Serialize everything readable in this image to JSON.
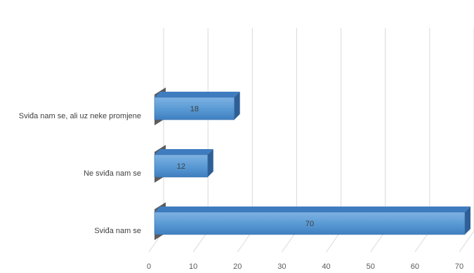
{
  "chart_data": {
    "type": "bar",
    "orientation": "horizontal",
    "three_d": true,
    "categories": [
      "Sviđa nam se, ali uz neke promjene",
      "Ne sviđa nam se",
      "Sviđa nam se"
    ],
    "values": [
      18,
      12,
      70
    ],
    "data_labels": [
      "18",
      "12",
      "70"
    ],
    "xlim": [
      0,
      70
    ],
    "x_ticks": [
      "0",
      "10",
      "20",
      "30",
      "40",
      "50",
      "60",
      "70"
    ],
    "grid": true,
    "legend": "none",
    "colors": {
      "bar_front": "#5b9bd5",
      "bar_top": "#3e7cbf",
      "bar_side": "#2e5f96",
      "grid": "#d9d9d9",
      "wall": "#404040"
    }
  }
}
